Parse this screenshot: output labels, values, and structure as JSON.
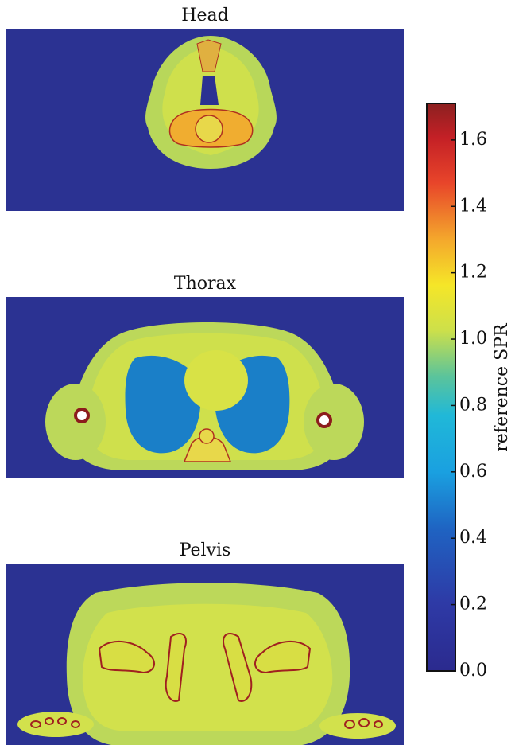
{
  "chart_data": {
    "type": "image",
    "panels": [
      "Head",
      "Thorax",
      "Pelvis"
    ],
    "colorbar_label": "reference SPR",
    "clim": [
      0,
      1.71
    ],
    "cticks": [
      {
        "value": 0,
        "label": "0.0"
      },
      0.2,
      0.4,
      0.6,
      0.8,
      {
        "value": 1,
        "label": "1.0"
      },
      1.2,
      1.4,
      1.6
    ]
  }
}
